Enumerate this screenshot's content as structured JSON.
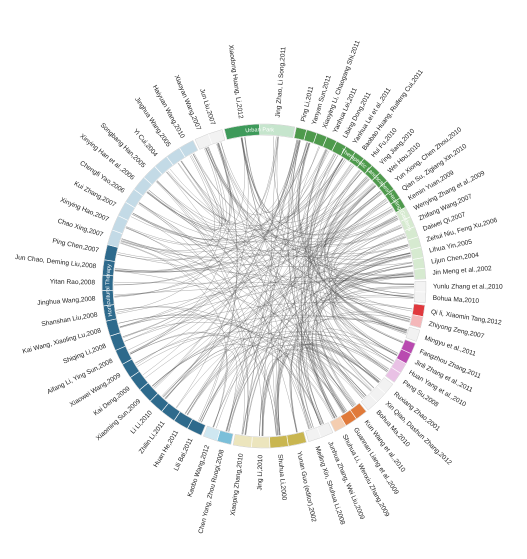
{
  "groups": [
    {
      "key": "therapeutic",
      "name": "Therapeutic Landscapes/ Healing Gardens",
      "color": "#4e9a4c",
      "color_light": "#d6ead0",
      "authors": [
        "Ping Li,2011",
        "Yanyan Sun,2011",
        "Xiaoying Li, Chaogang Shi,2011",
        "Yanhua Lei,2011",
        "Libing Dong,2011",
        "Yanhua Lei et al.,2011",
        "Baobao Huang, Ruifeng Cui,2011",
        "Hui Fu,2010",
        "Ying Jiang,2010",
        "Wei Hou,2010",
        "Yun Xiong, Chen Zhou,2010",
        "Qian Su, Zigiang Xin,2010",
        "Kemin Yuan,2009",
        "Wenying Zhang et al.,2009",
        "Zhifang Wang,2007",
        "Daiwei Qi,2007",
        "Zehui Niu, Feng Xu,2006",
        "Lihua Yin,2005",
        "Lijun Chen,2004",
        "Jin Meng et al.,2002"
      ]
    },
    {
      "key": "g2",
      "name": "",
      "color": "#f3f3f3",
      "color_light": "#f3f3f3",
      "authors": [
        "Yunlu Zhang et al.,2010",
        "Bohua Ma,2010"
      ]
    },
    {
      "key": "g3",
      "name": "",
      "color": "#e0393e",
      "color_light": "#f4b7b9",
      "authors": [
        "Qi li, Xiaomin Tang,2012",
        "Zhiyong Zeng,2007"
      ]
    },
    {
      "key": "g4",
      "name": "",
      "color": "#f2f2f2",
      "color_light": "#f2f2f2",
      "authors": [
        "Mingyu et al.,2011"
      ]
    },
    {
      "key": "g5",
      "name": "",
      "color": "#b94ab0",
      "color_light": "#e9c1e5",
      "authors": [
        "Fangzhou Zhang,2011",
        "Jinli Zhang et al.,2011",
        "Huan Yang et al.,2010",
        "Peng Su,2008"
      ]
    },
    {
      "key": "g6",
      "name": "",
      "color": "#f2f2f2",
      "color_light": "#f2f2f2",
      "authors": [
        "Ruxiang Zhao,2001",
        "Xin Qiao, Dashun Zhang,2012",
        "Bohua Ma,2010"
      ]
    },
    {
      "key": "g7",
      "name": "",
      "color": "#e07a3a",
      "color_light": "#f4cdb0",
      "authors": [
        "Kun Wang et al.,2010",
        "Guannan Liang et al.,2009",
        "Shuhua Li, Wenxiu Zhang,2009"
      ]
    },
    {
      "key": "g8",
      "name": "",
      "color": "#f2f2f2",
      "color_light": "#f2f2f2",
      "authors": [
        "Junhua Zhang, Wei Liu,2009",
        "Meiling Xin, Shuhua Li,2008"
      ]
    },
    {
      "key": "g9",
      "name": "",
      "color": "#c9b650",
      "color_light": "#ece5bd",
      "authors": [
        "Yunan Guo (editor),2002",
        "Shuhua Li,2000",
        "Jing Li,2010",
        "Xiaoping Zhang,2010"
      ]
    },
    {
      "key": "g10",
      "name": "",
      "color": "#7bbfd9",
      "color_light": "#cfe7f1",
      "authors": [
        "Chen Yong, Zhou Ruogi,2008",
        "Kaobo Wang,2012"
      ]
    },
    {
      "key": "horticultural",
      "name": "Horticultural Therapy",
      "color": "#2e6a8c",
      "color_light": "#c3dae6",
      "authors": [
        "Lili Bai,2011",
        "Huan He,2011",
        "Zhilin Li,2011",
        "Li Li,2010",
        "Xiaoming Sun,2009",
        "Kai Deng,2009",
        "Xiaowei Wang,2009",
        "Aifang Li, Ying Sun,2008",
        "Shiqing Li,2008",
        "Kai Wang, Xiaoling Lu,2008",
        "Shanshan Liu,2008",
        "Jinghua Wang,2008",
        "Yitan Rao,2008",
        "Jun Chao, Deming Liu,2008",
        "Ping Chen,2007",
        "Chao Xing,2007",
        "Xinying Hao,2007",
        "Kui Zhang,2007",
        "Chengfi Yao,2006",
        "Xinying Han et al.,2006",
        "Songbang Han,2005",
        "Yi Cui,2004",
        "Jinghua Wang,2005",
        "Haiyuan Wang,2010"
      ]
    },
    {
      "key": "g12",
      "name": "",
      "color": "#f2f2f2",
      "color_light": "#f2f2f2",
      "authors": [
        "Xiaoyan Wang,2007",
        "Jun Liu,2007"
      ]
    },
    {
      "key": "urban",
      "name": "Urban Park",
      "color": "#3e9a5a",
      "color_light": "#c6e5cd",
      "authors": [
        "Xiaodong Huang, Li,2012",
        "Jing Zhao, Li Song,2011"
      ]
    }
  ]
}
